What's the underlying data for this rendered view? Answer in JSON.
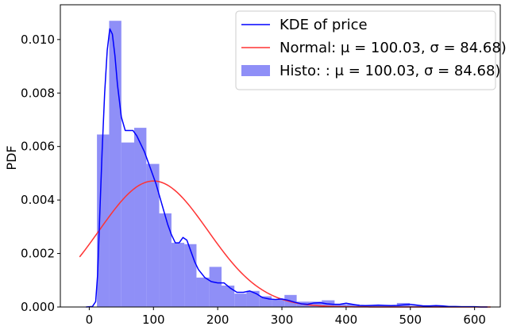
{
  "chart_data": {
    "type": "histogram+line",
    "title": "",
    "xlabel": "",
    "ylabel": "PDF",
    "xlim": [
      -45,
      640
    ],
    "ylim": [
      0,
      0.0113
    ],
    "x_ticks": [
      0,
      100,
      200,
      300,
      400,
      500,
      600
    ],
    "x_tick_labels": [
      "0",
      "100",
      "200",
      "300",
      "400",
      "500",
      "600"
    ],
    "y_ticks": [
      0,
      0.002,
      0.004,
      0.006,
      0.008,
      0.01
    ],
    "y_tick_labels": [
      "0.000",
      "0.002",
      "0.004",
      "0.006",
      "0.008",
      "0.010"
    ],
    "grid": false,
    "legend_position": "top-right",
    "colors": {
      "kde": "#0000ff",
      "normal": "#ff3333",
      "hist": "#8f8ff7"
    },
    "legend": {
      "kde": "KDE of price",
      "normal": "Normal: μ = 100.03, σ = 84.68)",
      "hist": "Histo: : μ = 100.03, σ = 84.68)"
    },
    "histogram": {
      "bin_edges": [
        12,
        31,
        50,
        70,
        89,
        109,
        128,
        148,
        167,
        187,
        206,
        226,
        245,
        265,
        284,
        304,
        323,
        343,
        362,
        382,
        401,
        421,
        440,
        460,
        479,
        499,
        518,
        538,
        557,
        577,
        596
      ],
      "values": [
        0.00645,
        0.0107,
        0.00615,
        0.0067,
        0.00535,
        0.0035,
        0.0024,
        0.00235,
        0.0011,
        0.0015,
        0.0008,
        0.0005,
        0.0006,
        0.0004,
        0.0003,
        0.00045,
        0.0002,
        0.0002,
        0.00025,
        0.0001,
        0.0001,
        5e-05,
        5e-05,
        5e-05,
        0.00015,
        5e-05,
        3e-05,
        3e-05,
        3e-05,
        2e-05
      ]
    },
    "kde": {
      "x": [
        -5,
        5,
        10,
        13,
        16,
        20,
        24,
        28,
        32,
        36,
        40,
        44,
        50,
        56,
        62,
        68,
        74,
        80,
        86,
        92,
        98,
        104,
        110,
        116,
        122,
        128,
        134,
        140,
        146,
        152,
        158,
        164,
        170,
        180,
        190,
        200,
        210,
        220,
        230,
        240,
        250,
        260,
        270,
        280,
        290,
        300,
        310,
        320,
        330,
        340,
        350,
        360,
        370,
        380,
        390,
        400,
        410,
        420,
        430,
        440,
        450,
        460,
        470,
        480,
        490,
        500,
        510,
        520,
        530,
        540,
        550,
        560,
        570,
        580,
        590,
        600,
        610,
        620
      ],
      "y": [
        0.0,
        2e-05,
        0.0002,
        0.0012,
        0.0032,
        0.0058,
        0.008,
        0.0096,
        0.0104,
        0.0102,
        0.0094,
        0.0083,
        0.0071,
        0.0066,
        0.0066,
        0.0066,
        0.0064,
        0.0061,
        0.0058,
        0.0054,
        0.005,
        0.0046,
        0.0041,
        0.0036,
        0.0031,
        0.0027,
        0.0024,
        0.0024,
        0.0026,
        0.0025,
        0.0021,
        0.0017,
        0.0014,
        0.0011,
        0.00095,
        0.0009,
        0.0009,
        0.0007,
        0.00055,
        0.00055,
        0.0006,
        0.0005,
        0.00035,
        0.0003,
        0.00028,
        0.0003,
        0.00025,
        0.00018,
        0.00012,
        0.0001,
        0.00015,
        0.00016,
        0.00012,
        0.0001,
        0.0001,
        0.00014,
        0.0001,
        6e-05,
        5e-05,
        6e-05,
        7e-05,
        6e-05,
        5e-05,
        6e-05,
        8e-05,
        0.0001,
        7e-05,
        4e-05,
        4e-05,
        5e-05,
        4e-05,
        2e-05,
        2e-05,
        1e-05,
        1e-05,
        1e-05,
        0.0,
        0.0
      ]
    },
    "normal": {
      "mu": 100.03,
      "sigma": 84.68,
      "x_range": [
        -15,
        625
      ]
    }
  }
}
